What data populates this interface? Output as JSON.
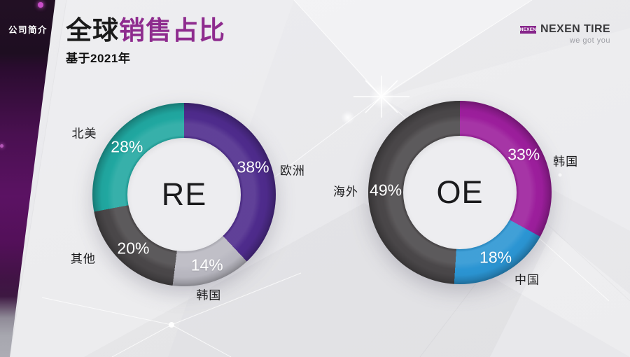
{
  "sidebar": {
    "label": "公司简介"
  },
  "header": {
    "title_black": "全球",
    "title_purple": "销售占比",
    "subtitle": "基于2021年"
  },
  "logo": {
    "box_text": "NEXEN",
    "name": "NEXEN TIRE",
    "tagline": "we got you",
    "box_color": "#87268B"
  },
  "colors": {
    "accent_purple": "#8E2B8E",
    "background": "#E9E9EC",
    "sidebar_purple": "#5B1263"
  },
  "chart_data": [
    {
      "type": "pie",
      "donut": true,
      "title": "RE",
      "value_suffix": "%",
      "start_angle_deg": 0,
      "direction": "clockwise",
      "slices": [
        {
          "label": "欧洲",
          "value": 38,
          "color": "#4E2B8C"
        },
        {
          "label": "韩国",
          "value": 14,
          "color": "#B9B8C1"
        },
        {
          "label": "其他",
          "value": 20,
          "color": "#4A4749"
        },
        {
          "label": "北美",
          "value": 28,
          "color": "#20A7A0"
        }
      ]
    },
    {
      "type": "pie",
      "donut": true,
      "title": "OE",
      "value_suffix": "%",
      "start_angle_deg": 0,
      "direction": "clockwise",
      "slices": [
        {
          "label": "韩国",
          "value": 33,
          "color": "#9C1E9C"
        },
        {
          "label": "中国",
          "value": 18,
          "color": "#2B95D3"
        },
        {
          "label": "海外",
          "value": 49,
          "color": "#4A4749"
        }
      ]
    }
  ]
}
